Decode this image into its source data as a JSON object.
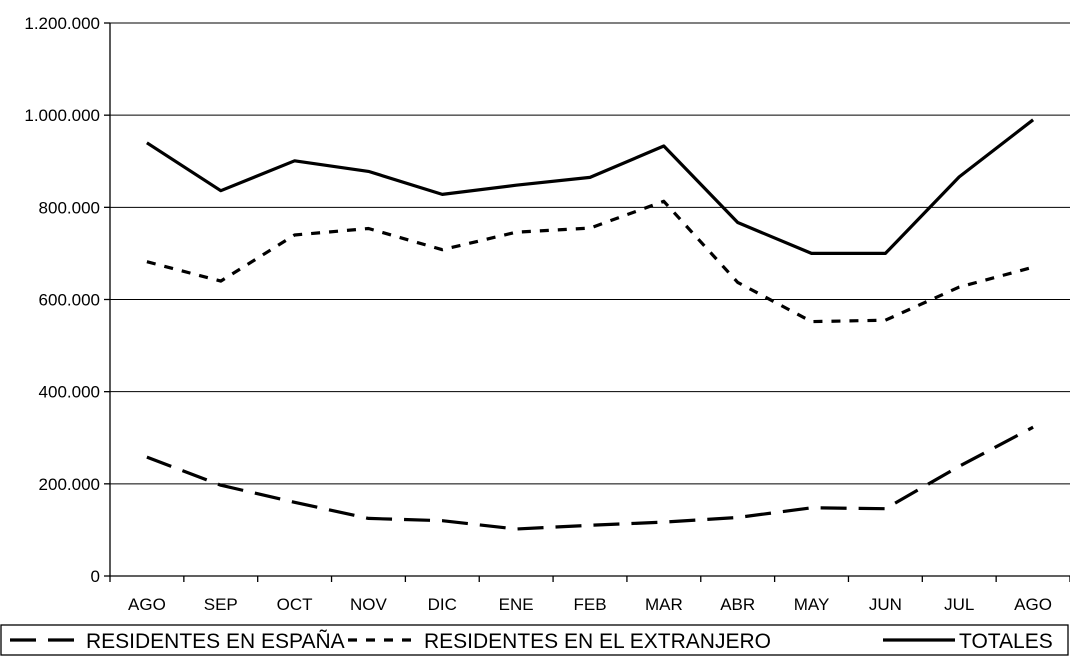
{
  "chart_data": {
    "type": "line",
    "title": "",
    "xlabel": "",
    "ylabel": "",
    "categories": [
      "AGO",
      "SEP",
      "OCT",
      "NOV",
      "DIC",
      "ENE",
      "FEB",
      "MAR",
      "ABR",
      "MAY",
      "JUN",
      "JUL",
      "AGO"
    ],
    "ylim": [
      0,
      1200000
    ],
    "yticks": [
      0,
      200000,
      400000,
      600000,
      800000,
      1000000,
      1200000
    ],
    "ytick_labels": [
      "0",
      "200.000",
      "400.000",
      "600.000",
      "800.000",
      "1.000.000",
      "1.200.000"
    ],
    "grid": "horizontal",
    "legend_position": "bottom",
    "series": [
      {
        "name": "RESIDENTES EN ESPAÑA",
        "dash": "long-dash",
        "color": "#000000",
        "values": [
          258000,
          197000,
          160000,
          125000,
          120000,
          102000,
          110000,
          117000,
          127000,
          148000,
          146000,
          238000,
          323000
        ]
      },
      {
        "name": "RESIDENTES EN EL EXTRANJERO",
        "dash": "short-dash",
        "color": "#000000",
        "values": [
          682000,
          640000,
          740000,
          754000,
          708000,
          746000,
          755000,
          813000,
          637000,
          552000,
          555000,
          627000,
          670000
        ]
      },
      {
        "name": "TOTALES",
        "dash": "solid",
        "color": "#000000",
        "values": [
          940000,
          836000,
          901000,
          878000,
          828000,
          848000,
          865000,
          933000,
          767000,
          700000,
          700000,
          866000,
          990000
        ]
      }
    ]
  }
}
